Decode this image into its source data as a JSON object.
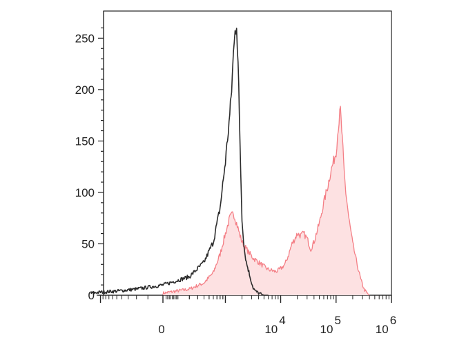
{
  "chart_data": {
    "type": "area",
    "title": "",
    "xlabel": "",
    "ylabel": "",
    "x_scale": "biexponential",
    "ylim": [
      0,
      265
    ],
    "y_ticks": [
      {
        "value": 0,
        "label": "0"
      },
      {
        "value": 50,
        "label": "50"
      },
      {
        "value": 100,
        "label": "100"
      },
      {
        "value": 150,
        "label": "150"
      },
      {
        "value": 200,
        "label": "200"
      },
      {
        "value": 250,
        "label": "250"
      }
    ],
    "x_ticks": [
      {
        "value": 0,
        "base": "0",
        "exp": ""
      },
      {
        "value": 10000,
        "base": "10",
        "exp": "4"
      },
      {
        "value": 100000,
        "base": "10",
        "exp": "5"
      },
      {
        "value": 1000000,
        "base": "10",
        "exp": "6"
      }
    ],
    "grid": false,
    "legend": "none",
    "series": [
      {
        "color": "#2b2b2b",
        "fill": "none",
        "x": [
          -1500,
          -1000,
          -500,
          -200,
          0,
          200,
          400,
          600,
          800,
          1000,
          1200,
          1300,
          1400,
          1450,
          1500,
          1550,
          1600,
          1650,
          1700,
          1750,
          1800,
          1900,
          2000,
          2200,
          2400,
          2600,
          2800,
          3000,
          3200,
          3500,
          4000,
          4500,
          5000,
          6000
        ],
        "y": [
          2,
          3,
          4,
          6,
          10,
          18,
          32,
          52,
          85,
          130,
          175,
          200,
          235,
          245,
          262,
          258,
          265,
          240,
          225,
          200,
          170,
          120,
          75,
          45,
          32,
          25,
          18,
          12,
          7,
          4,
          2,
          1,
          0,
          0
        ]
      },
      {
        "color": "#f47f86",
        "fill": "#fde1e2",
        "x": [
          0,
          200,
          400,
          600,
          800,
          1000,
          1200,
          1400,
          1600,
          1800,
          2000,
          2400,
          2800,
          3200,
          3600,
          4000,
          5000,
          6000,
          7000,
          8000,
          9000,
          10000,
          12000,
          14000,
          16000,
          18000,
          20000,
          23000,
          26000,
          30000,
          35000,
          40000,
          50000,
          60000,
          70000,
          80000,
          90000,
          100000,
          110000,
          120000,
          130000,
          140000,
          150000,
          170000,
          200000,
          240000,
          280000,
          320000,
          360000,
          400000
        ],
        "y": [
          2,
          6,
          12,
          22,
          40,
          60,
          75,
          80,
          70,
          60,
          52,
          45,
          40,
          36,
          34,
          32,
          28,
          25,
          24,
          23,
          24,
          26,
          30,
          40,
          50,
          55,
          60,
          58,
          60,
          55,
          45,
          52,
          70,
          90,
          105,
          120,
          130,
          140,
          165,
          180,
          150,
          120,
          100,
          75,
          50,
          30,
          15,
          6,
          2,
          0
        ]
      }
    ]
  }
}
